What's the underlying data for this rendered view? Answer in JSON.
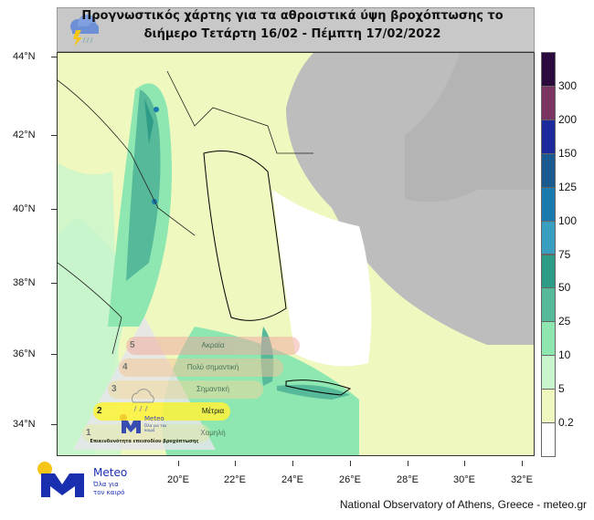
{
  "title": {
    "line1": "Προγνωστικός χάρτης για τα αθροιστικά ύψη βροχόπτωσης το",
    "line2": "διήμερο Τετάρτη 16/02 - Πέμπτη 17/02/2022",
    "icon": "storm-cloud-rain-icon"
  },
  "axes": {
    "lat_labels": [
      "44°N",
      "42°N",
      "40°N",
      "38°N",
      "36°N",
      "34°N"
    ],
    "lon_labels": [
      "20°E",
      "22°E",
      "24°E",
      "26°E",
      "28°E",
      "30°E",
      "32°E"
    ]
  },
  "colorbar": {
    "labels": [
      "300",
      "200",
      "150",
      "125",
      "100",
      "75",
      "50",
      "25",
      "10",
      "5",
      "0.2"
    ],
    "colors": [
      "#2b0a3d",
      "#7a3563",
      "#1c2a9e",
      "#1a5a8f",
      "#1a7aad",
      "#3a9ec0",
      "#2f9c88",
      "#55b99a",
      "#8ee6b0",
      "#c9f5cc",
      "#eef8bf",
      "#ffffff"
    ]
  },
  "legend": {
    "levels": [
      {
        "n": "5",
        "label": "Ακραία",
        "color": "#f0a6a0"
      },
      {
        "n": "4",
        "label": "Πολύ σημαντική",
        "color": "#f3c19a"
      },
      {
        "n": "3",
        "label": "Σημαντική",
        "color": "#f2d59c"
      },
      {
        "n": "2",
        "label": "Μέτρια",
        "color": "#fff23a"
      },
      {
        "n": "1",
        "label": "Χαμηλή",
        "color": "#e8e8a8"
      }
    ],
    "caption": "Επικινδυνότητα επεισοδίου βροχόπτωσης",
    "logo_name": "Meteo",
    "logo_tagline": "Όλα για τον καιρό"
  },
  "logo": {
    "name": "Meteo",
    "tagline1": "Όλα για",
    "tagline2": "τον καιρό",
    "brand_color": "#1a2fb0",
    "sun_color": "#f5c518"
  },
  "credit": "National Observatory of Athens, Greece - meteo.gr"
}
